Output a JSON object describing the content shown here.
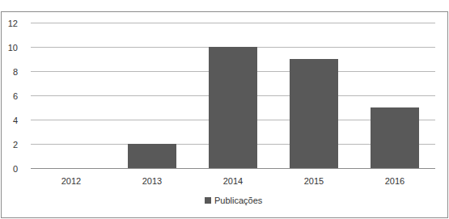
{
  "chart_data": {
    "type": "bar",
    "categories": [
      "2012",
      "2013",
      "2014",
      "2015",
      "2016"
    ],
    "series": [
      {
        "name": "Publicações",
        "color": "#595959",
        "values": [
          0,
          2,
          10,
          9,
          5
        ]
      }
    ],
    "ylim": [
      0,
      12
    ],
    "yticks": [
      0,
      2,
      4,
      6,
      8,
      10,
      12
    ],
    "grid": true,
    "legend": "bottom"
  }
}
